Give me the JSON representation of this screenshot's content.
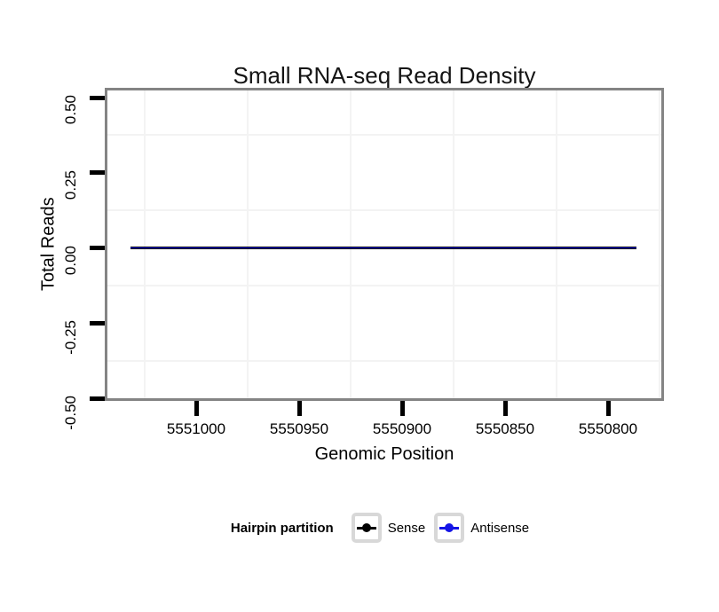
{
  "title": "Small RNA-seq Read Density",
  "axes": {
    "x": {
      "label": "Genomic Position",
      "tick_labels": [
        "5551000",
        "5550950",
        "5550900",
        "5550850",
        "5550800"
      ],
      "reversed": true
    },
    "y": {
      "label": "Total Reads",
      "tick_labels": [
        "0.50",
        "0.25",
        "0.00",
        "-0.25",
        "-0.50"
      ]
    }
  },
  "legend": {
    "title": "Hairpin partition",
    "items": [
      {
        "label": "Sense",
        "color": "#000000"
      },
      {
        "label": "Antisense",
        "color": "#1414E6"
      }
    ]
  },
  "colors": {
    "panel_border": "#848484",
    "axis_tick": "#000000",
    "minor_grid": "#f3f3f3",
    "legend_key_border": "#d8d8d8",
    "background": "#ffffff"
  },
  "chart_data": {
    "type": "line",
    "title": "Small RNA-seq Read Density",
    "xlabel": "Genomic Position",
    "ylabel": "Total Reads",
    "x_axis": {
      "reversed": true,
      "ticks": [
        5551000,
        5550950,
        5550900,
        5550850,
        5550800
      ],
      "data_range": [
        5551032,
        5550786
      ]
    },
    "y_axis": {
      "ticks": [
        0.5,
        0.25,
        0.0,
        -0.25,
        -0.5
      ],
      "limits": [
        -0.5,
        0.5
      ]
    },
    "series": [
      {
        "name": "Sense",
        "color": "#000000",
        "x": [
          5551032,
          5550786
        ],
        "y": [
          0,
          0
        ]
      },
      {
        "name": "Antisense",
        "color": "#1414E6",
        "x": [
          5551032,
          5550786
        ],
        "y": [
          0,
          0
        ]
      }
    ],
    "legend_title": "Hairpin partition",
    "legend_position": "bottom",
    "grid": "minor-only"
  }
}
